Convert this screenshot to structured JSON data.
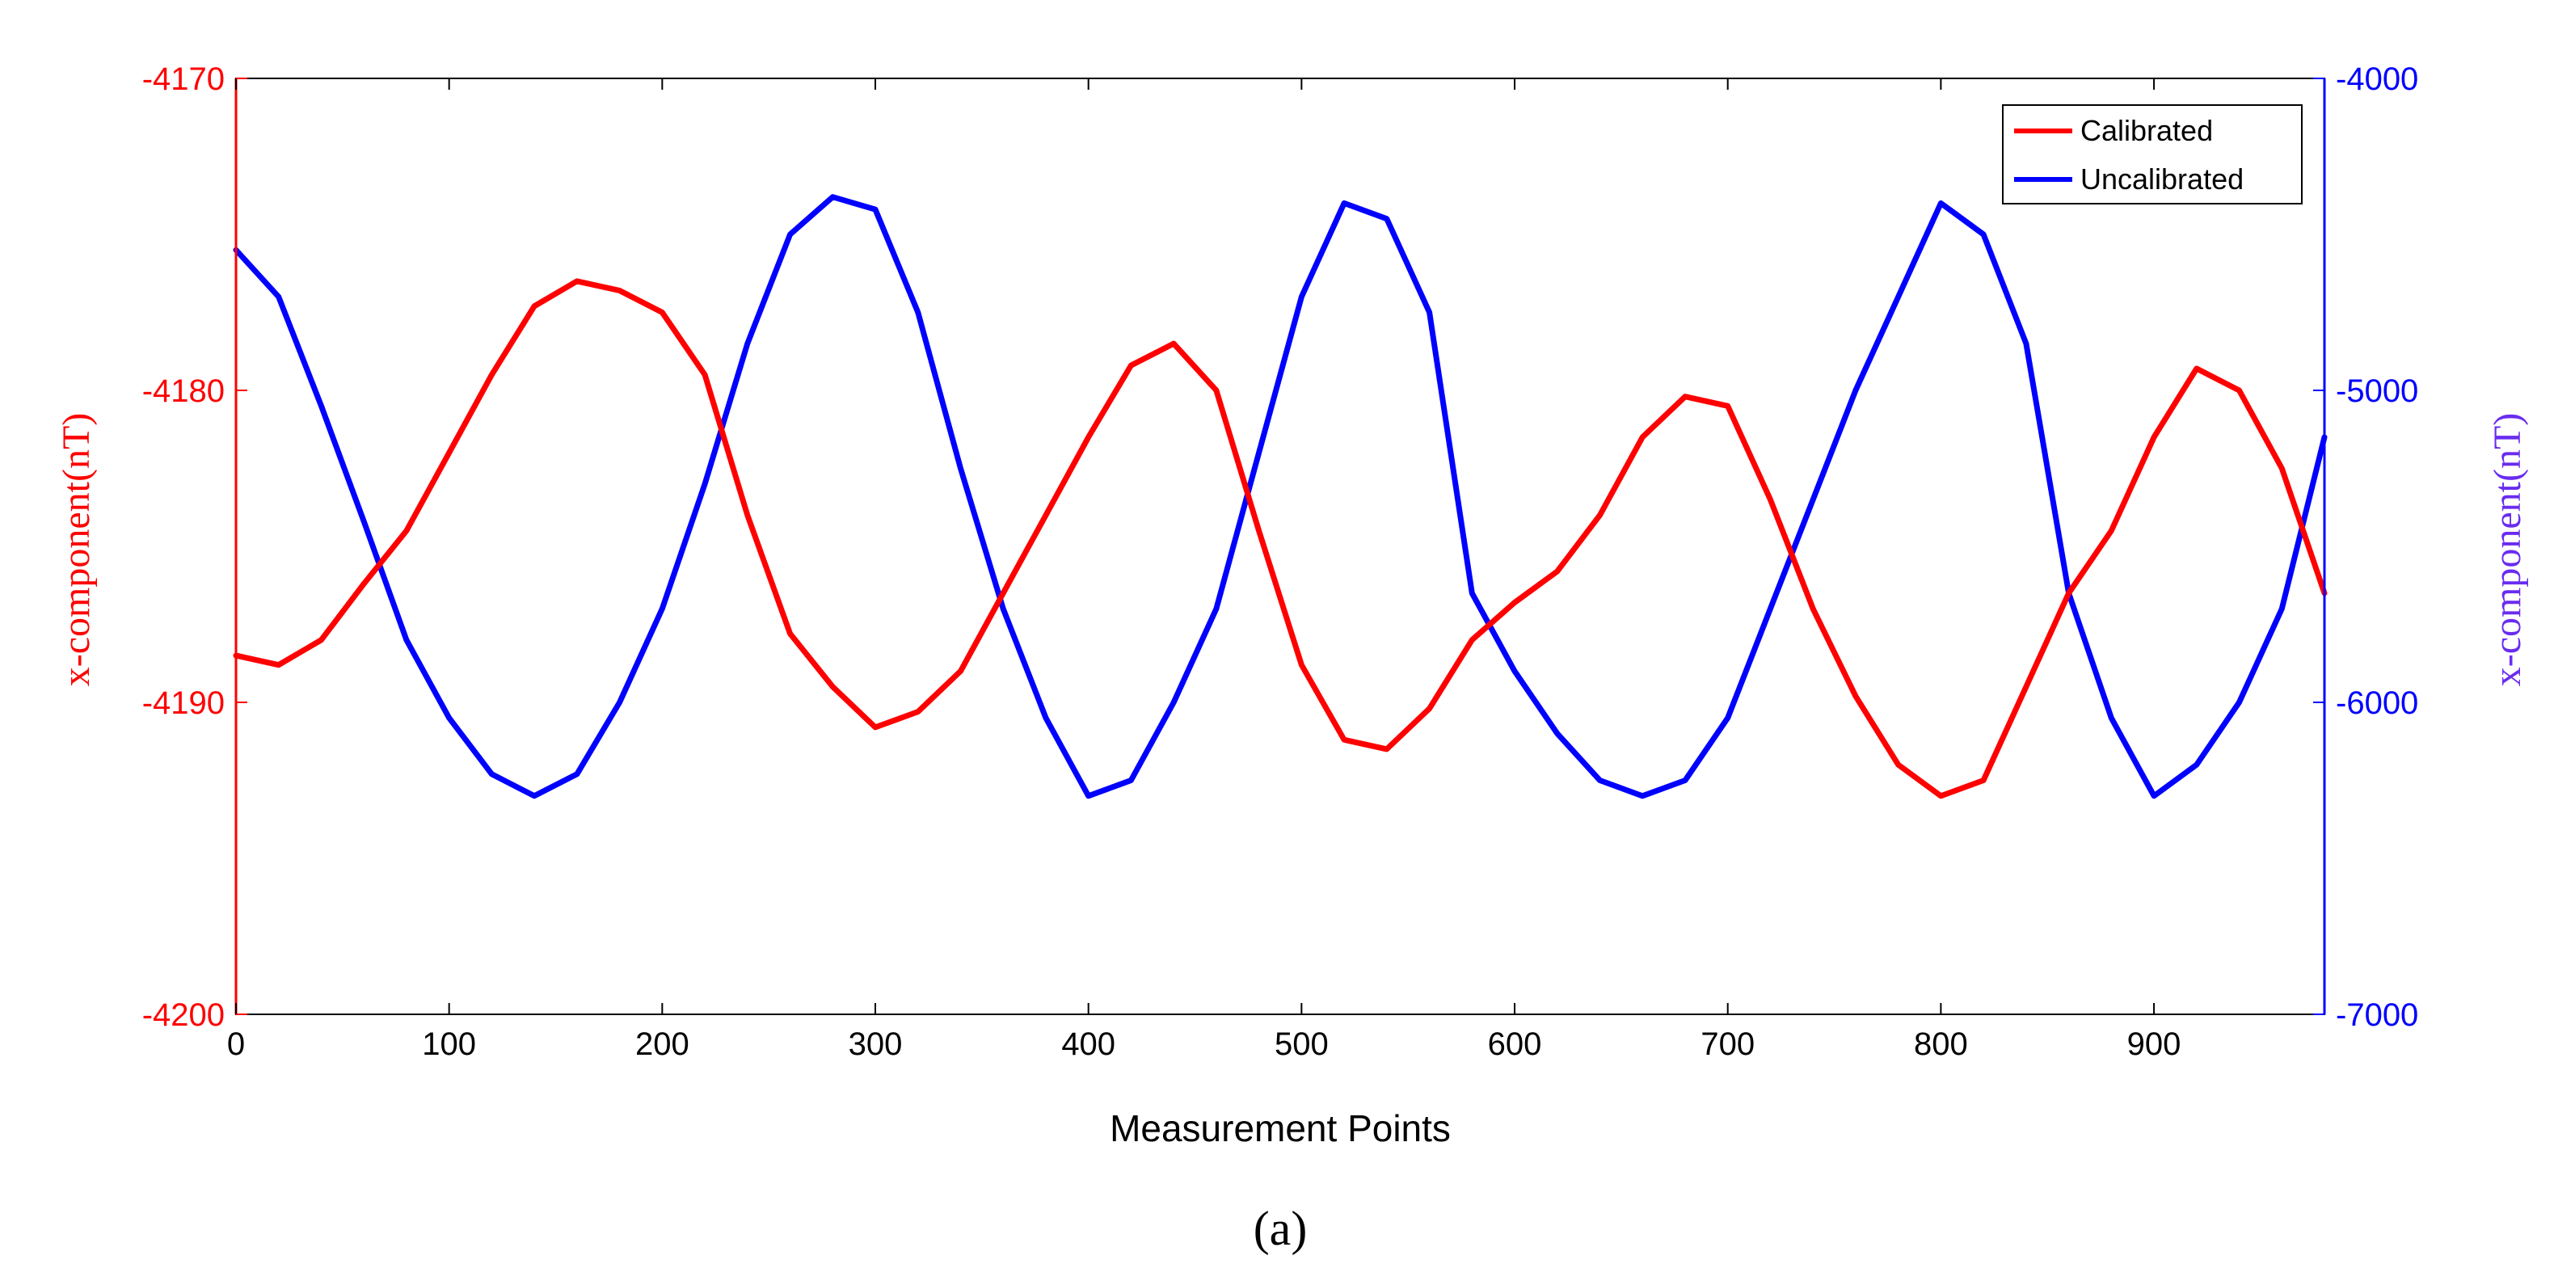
{
  "panel_label": "(a)",
  "chart_data": {
    "type": "line",
    "title": "",
    "xlabel": "Measurement Points",
    "ylabel_left": "x-component(nT)",
    "ylabel_right": "x-component(nT)",
    "xlim": [
      0,
      980
    ],
    "ylim_left": [
      -4200,
      -4170
    ],
    "ylim_right": [
      -7000,
      -4000
    ],
    "x_ticks": [
      "0",
      "100",
      "200",
      "300",
      "400",
      "500",
      "600",
      "700",
      "800",
      "900"
    ],
    "y_ticks_left": [
      "-4170",
      "-4180",
      "-4190",
      "-4200"
    ],
    "y_ticks_right": [
      "-4000",
      "-5000",
      "-6000",
      "-7000"
    ],
    "grid": false,
    "legend_position": "top-right",
    "colors": {
      "calibrated": "#ff0000",
      "uncalibrated": "#0000ff",
      "left_axis": "#ff0000",
      "right_axis": "#0000ff",
      "right_label": "#6a2cf0"
    },
    "series": [
      {
        "name": "Calibrated",
        "axis": "left",
        "x": [
          0,
          20,
          40,
          60,
          80,
          100,
          120,
          140,
          160,
          180,
          200,
          220,
          240,
          260,
          280,
          300,
          320,
          340,
          360,
          380,
          400,
          420,
          440,
          460,
          480,
          500,
          520,
          540,
          560,
          580,
          600,
          620,
          640,
          660,
          680,
          700,
          720,
          740,
          760,
          780,
          800,
          820,
          840,
          860,
          880,
          900,
          920,
          940,
          960,
          980
        ],
        "values": [
          -4188.5,
          -4188.8,
          -4188,
          -4186.2,
          -4184.5,
          -4182,
          -4179.5,
          -4177.3,
          -4176.5,
          -4176.8,
          -4177.5,
          -4179.5,
          -4184,
          -4187.8,
          -4189.5,
          -4190.8,
          -4190.3,
          -4189,
          -4186.5,
          -4184,
          -4181.5,
          -4179.2,
          -4178.5,
          -4180,
          -4184.5,
          -4188.8,
          -4191.2,
          -4191.5,
          -4190.2,
          -4188,
          -4186.8,
          -4185.8,
          -4184,
          -4181.5,
          -4180.2,
          -4180.5,
          -4183.5,
          -4187,
          -4189.8,
          -4192,
          -4193,
          -4192.5,
          -4189.5,
          -4186.5,
          -4184.5,
          -4181.5,
          -4179.3,
          -4180,
          -4182.5,
          -4186.5
        ]
      },
      {
        "name": "Uncalibrated",
        "axis": "right",
        "x": [
          0,
          20,
          40,
          60,
          80,
          100,
          120,
          140,
          160,
          180,
          200,
          220,
          240,
          260,
          280,
          300,
          320,
          340,
          360,
          380,
          400,
          420,
          440,
          460,
          480,
          500,
          520,
          540,
          560,
          580,
          600,
          620,
          640,
          660,
          680,
          700,
          720,
          740,
          760,
          780,
          800,
          820,
          840,
          860,
          880,
          900,
          920,
          940,
          960,
          980
        ],
        "values": [
          -4550,
          -4700,
          -5050,
          -5420,
          -5800,
          -6050,
          -6230,
          -6300,
          -6230,
          -6000,
          -5700,
          -5300,
          -4850,
          -4500,
          -4380,
          -4420,
          -4750,
          -5250,
          -5700,
          -6050,
          -6300,
          -6250,
          -6000,
          -5700,
          -5200,
          -4700,
          -4400,
          -4450,
          -4750,
          -5650,
          -5900,
          -6100,
          -6250,
          -6300,
          -6250,
          -6050,
          -5700,
          -5350,
          -5000,
          -4700,
          -4400,
          -4500,
          -4850,
          -5650,
          -6050,
          -6300,
          -6200,
          -6000,
          -5700,
          -5150
        ]
      }
    ]
  }
}
